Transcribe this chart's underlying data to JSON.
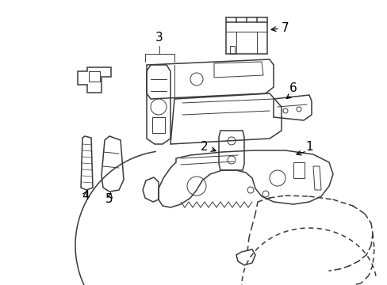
{
  "bg_color": "#ffffff",
  "line_color": "#3a3a3a",
  "label_color": "#000000",
  "fig_width": 4.89,
  "fig_height": 3.6,
  "dpi": 100
}
